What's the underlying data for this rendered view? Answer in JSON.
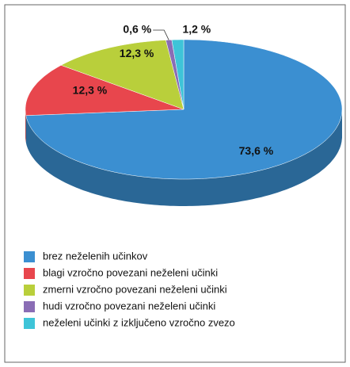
{
  "chart_data": {
    "type": "pie3d",
    "categories": [
      "brez neželenih učinkov",
      "blagi vzročno povezani neželeni učinki",
      "zmerni vzročno povezani neželeni učinki",
      "hudi vzročno povezani neželeni učinki",
      "neželeni učinki z izključeno vzročno zvezo"
    ],
    "values": [
      73.6,
      12.3,
      12.3,
      0.6,
      1.2
    ],
    "value_labels": [
      "73,6 %",
      "12,3 %",
      "12,3 %",
      "0,6 %",
      "1,2 %"
    ],
    "colors": [
      "#3b8fd1",
      "#e8464d",
      "#b9cf3b",
      "#8a6db5",
      "#3ec4d8"
    ],
    "legend": "bottom-left"
  }
}
